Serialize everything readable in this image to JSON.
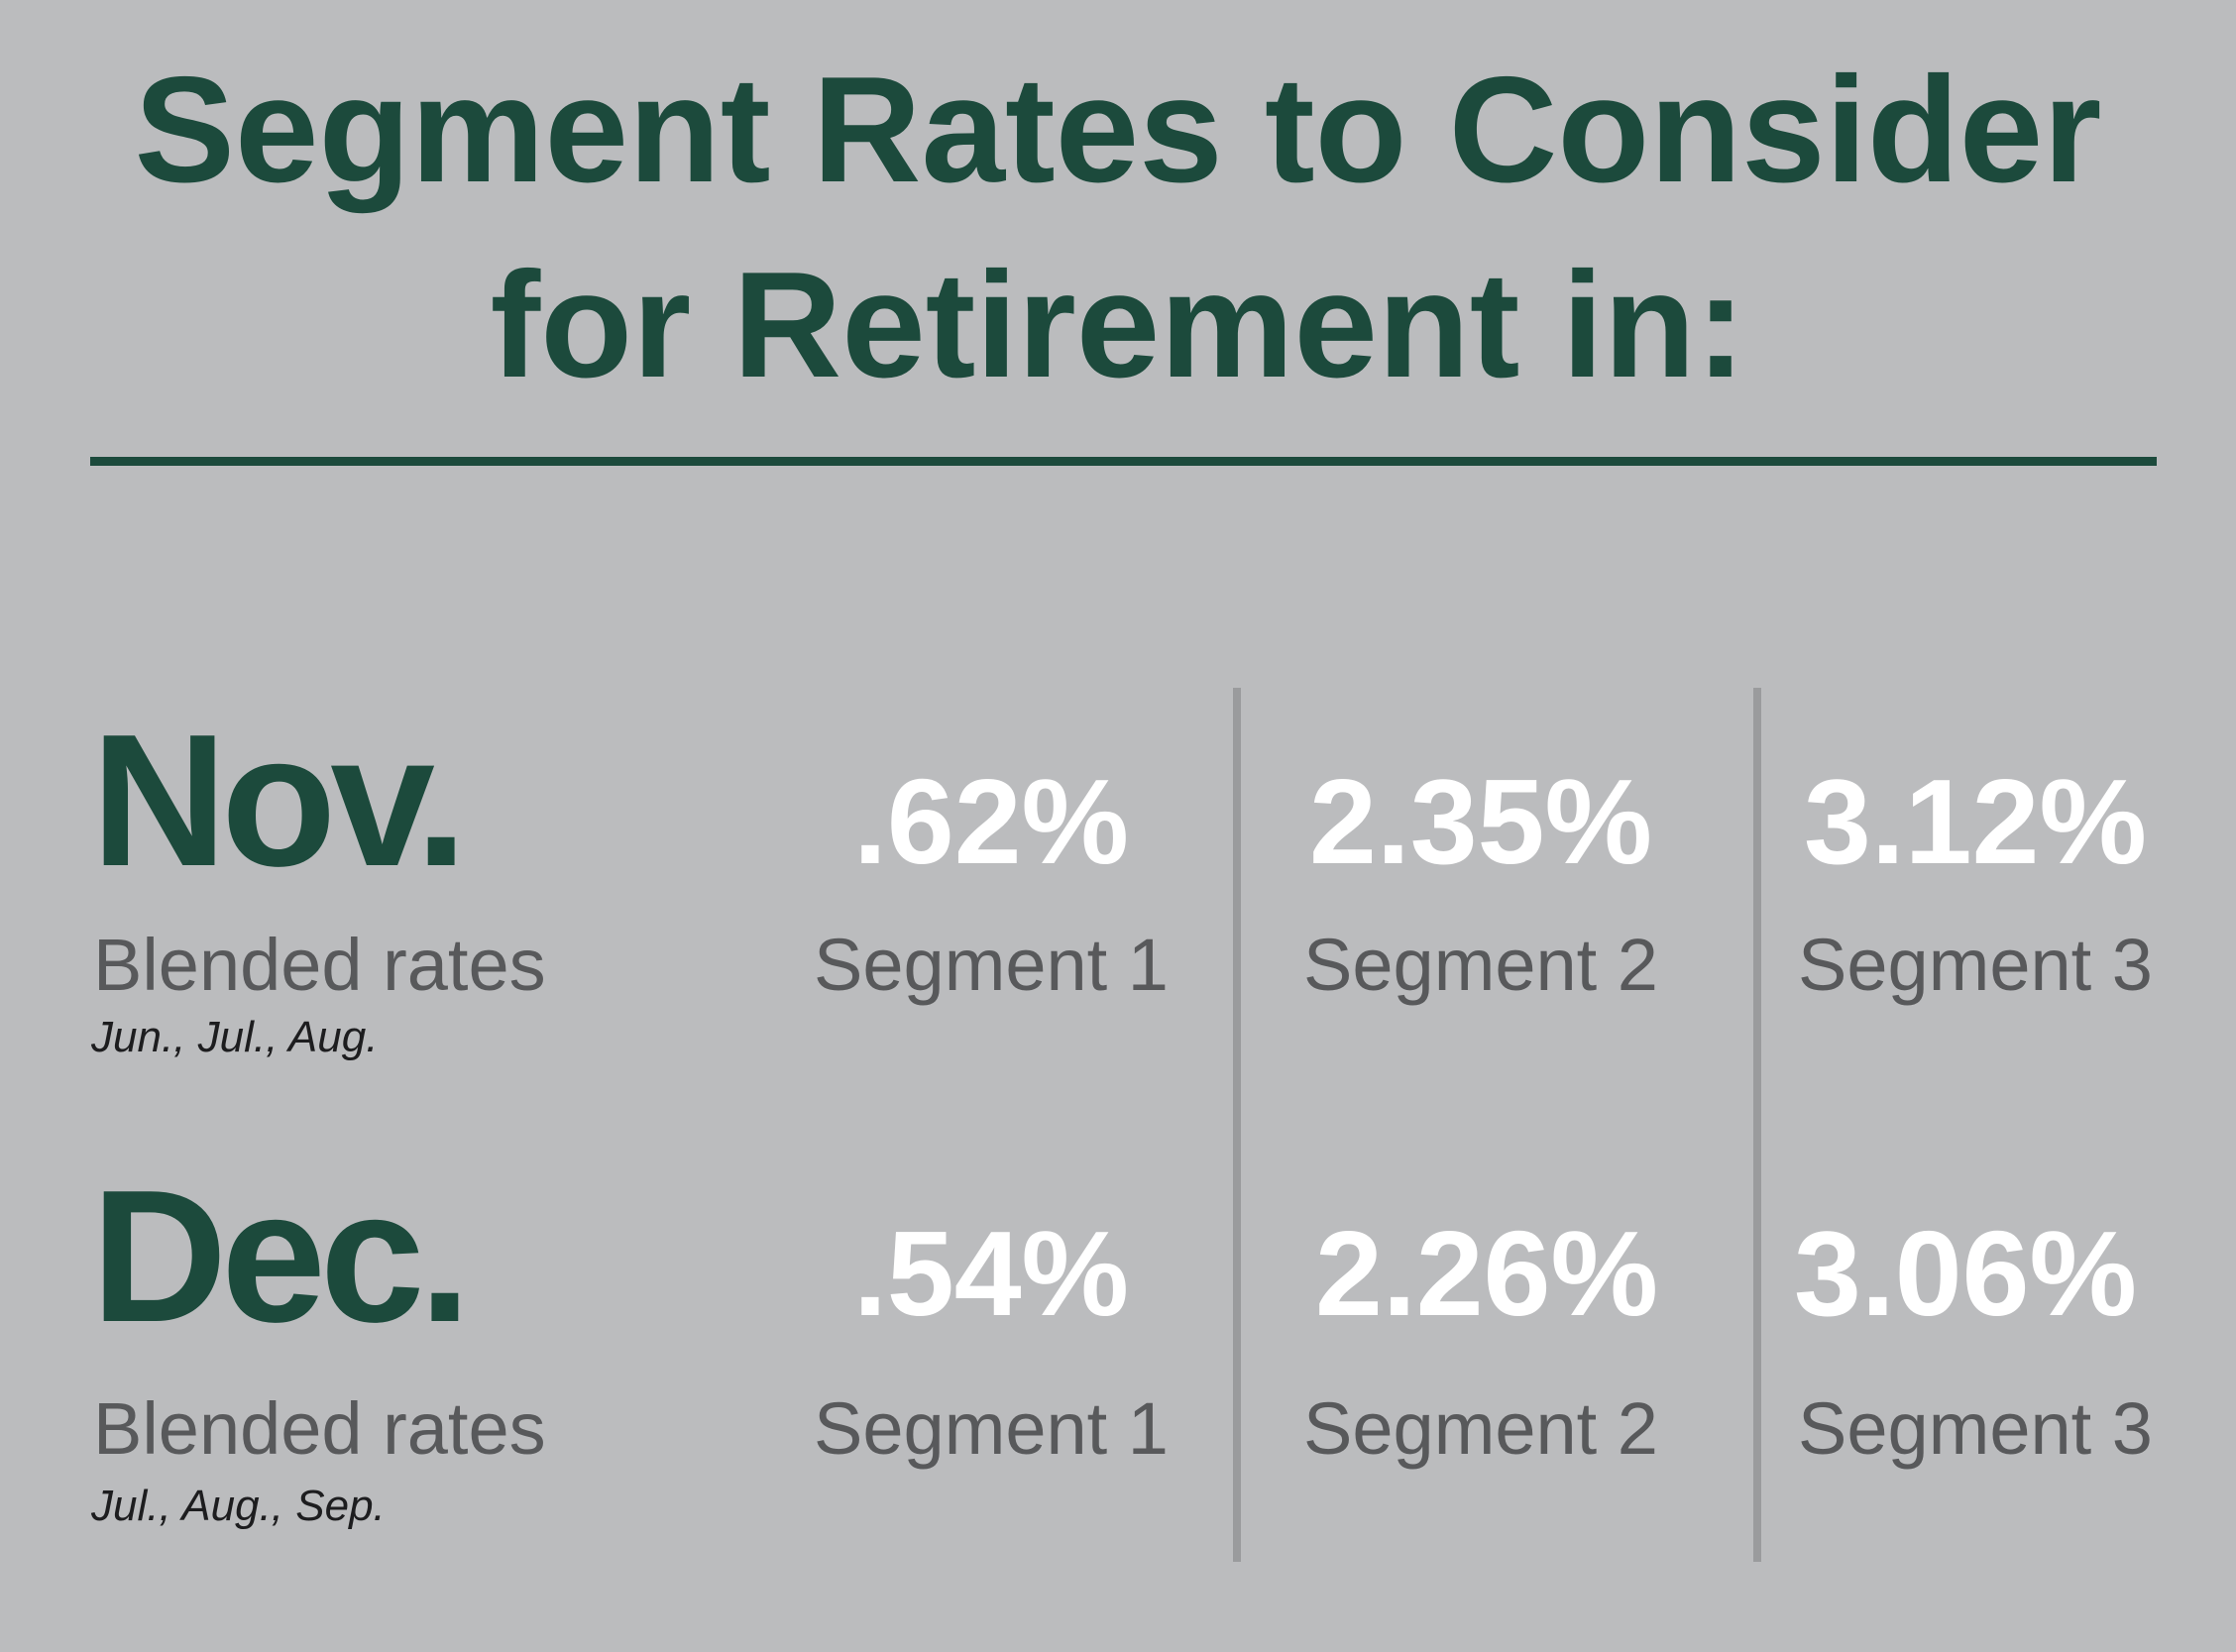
{
  "title": {
    "line1": "Segment Rates to Consider",
    "line2": "for Retirement in:"
  },
  "colors": {
    "background": "#bbbcbe",
    "accent_green": "#1c4a3c",
    "label_gray": "#58595b",
    "value_white": "#ffffff",
    "divider_gray": "#9a9b9d"
  },
  "rows": [
    {
      "month": "Nov.",
      "label": "Blended rates",
      "months_range": "Jun., Jul., Aug.",
      "segments": [
        {
          "value": ".62%",
          "label": "Segment 1"
        },
        {
          "value": "2.35%",
          "label": "Segment 2"
        },
        {
          "value": "3.12%",
          "label": "Segment 3"
        }
      ]
    },
    {
      "month": "Dec.",
      "label": "Blended rates",
      "months_range": "Jul., Aug., Sep.",
      "segments": [
        {
          "value": ".54%",
          "label": "Segment 1"
        },
        {
          "value": "2.26%",
          "label": "Segment 2"
        },
        {
          "value": "3.06%",
          "label": "Segment 3"
        }
      ]
    }
  ]
}
